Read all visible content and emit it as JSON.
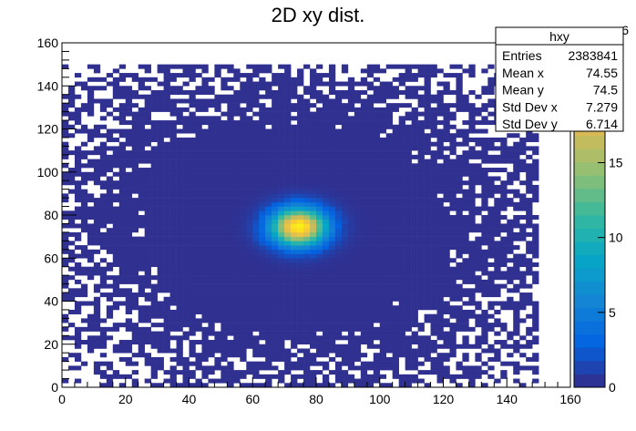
{
  "chart_data": {
    "type": "heatmap",
    "title": "2D xy dist.",
    "xlabel": "",
    "ylabel": "",
    "xlim": [
      0,
      160
    ],
    "ylim": [
      0,
      160
    ],
    "data_extent": {
      "x": [
        0,
        150
      ],
      "y": [
        0,
        150
      ]
    },
    "bin_width": 2,
    "xticks": [
      "0",
      "20",
      "40",
      "60",
      "80",
      "100",
      "120",
      "140",
      "160"
    ],
    "yticks": [
      "0",
      "20",
      "40",
      "60",
      "80",
      "100",
      "120",
      "140",
      "160"
    ],
    "colorbar": {
      "palette": "kBird",
      "range": [
        0,
        23
      ],
      "ticks": [
        "0",
        "5",
        "10",
        "15"
      ],
      "exponent_label": "6",
      "colors": [
        "#352a87",
        "#0363e1",
        "#1485d4",
        "#06a7c6",
        "#38b99e",
        "#92bf73",
        "#d9ba56",
        "#fcce2e",
        "#f9fb0e"
      ]
    },
    "distribution": {
      "mean_x": 74.55,
      "mean_y": 74.5,
      "peak_value": 22,
      "core_sigma": 6,
      "background_level": 0.3
    },
    "stats_box": {
      "title": "hxy",
      "rows": [
        {
          "label": "Entries",
          "value": "2383841"
        },
        {
          "label": "Mean x",
          "value": "74.55"
        },
        {
          "label": "Mean y",
          "value": "74.5"
        },
        {
          "label": "Std Dev x",
          "value": "7.279"
        },
        {
          "label": "Std Dev y",
          "value": "6.714"
        }
      ]
    },
    "grid": false
  }
}
